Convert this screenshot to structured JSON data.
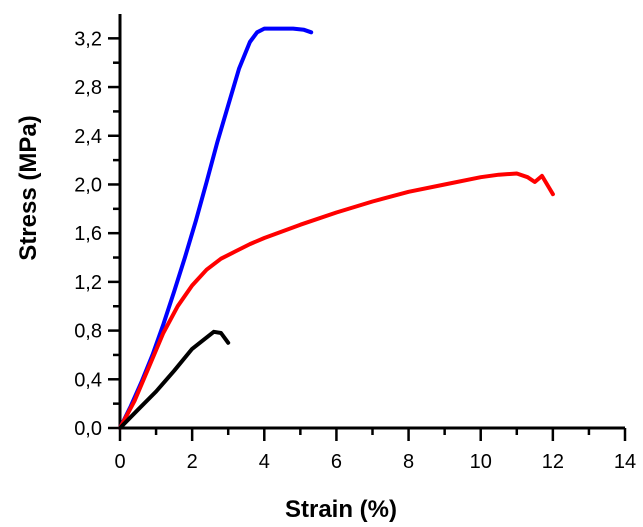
{
  "chart_data": {
    "type": "line",
    "title": "",
    "xlabel": "Strain (%)",
    "ylabel": "Stress (MPa)",
    "xlim": [
      0,
      14
    ],
    "ylim": [
      0,
      3.4
    ],
    "x_ticks": [
      0,
      2,
      4,
      6,
      8,
      10,
      12,
      14
    ],
    "x_tick_labels": [
      "0",
      "2",
      "4",
      "6",
      "8",
      "10",
      "12",
      "14"
    ],
    "y_ticks": [
      0,
      0.4,
      0.8,
      1.2,
      1.6,
      2.0,
      2.4,
      2.8,
      3.2
    ],
    "y_tick_labels": [
      "0,0",
      "0,4",
      "0,8",
      "1,2",
      "1,6",
      "2,0",
      "2,4",
      "2,8",
      "3,2"
    ],
    "x_minor_step": 1,
    "y_minor_step": 0.2,
    "grid": false,
    "legend": "none",
    "series": [
      {
        "color": "#0000ff",
        "x": [
          0,
          0.3,
          0.6,
          0.9,
          1.2,
          1.5,
          1.8,
          2.1,
          2.4,
          2.7,
          3.0,
          3.3,
          3.6,
          3.8,
          4.0,
          4.2,
          4.5,
          4.8,
          5.1,
          5.3
        ],
        "y": [
          0,
          0.18,
          0.38,
          0.6,
          0.85,
          1.12,
          1.4,
          1.7,
          2.02,
          2.35,
          2.65,
          2.95,
          3.17,
          3.25,
          3.28,
          3.28,
          3.28,
          3.28,
          3.27,
          3.25
        ]
      },
      {
        "color": "#ff0000",
        "x": [
          0,
          0.4,
          0.8,
          1.2,
          1.6,
          2.0,
          2.4,
          2.8,
          3.2,
          3.6,
          4.0,
          5.0,
          6.0,
          7.0,
          8.0,
          9.0,
          10.0,
          10.5,
          11.0,
          11.3,
          11.5,
          11.7,
          11.9,
          12.0
        ],
        "y": [
          0,
          0.22,
          0.5,
          0.78,
          1.0,
          1.17,
          1.3,
          1.39,
          1.45,
          1.51,
          1.56,
          1.67,
          1.77,
          1.86,
          1.94,
          2.0,
          2.06,
          2.08,
          2.09,
          2.06,
          2.02,
          2.07,
          1.97,
          1.92
        ]
      },
      {
        "color": "#000000",
        "x": [
          0,
          0.5,
          1.0,
          1.5,
          2.0,
          2.3,
          2.6,
          2.8,
          3.0
        ],
        "y": [
          0,
          0.15,
          0.3,
          0.47,
          0.65,
          0.72,
          0.79,
          0.78,
          0.7
        ]
      }
    ]
  }
}
